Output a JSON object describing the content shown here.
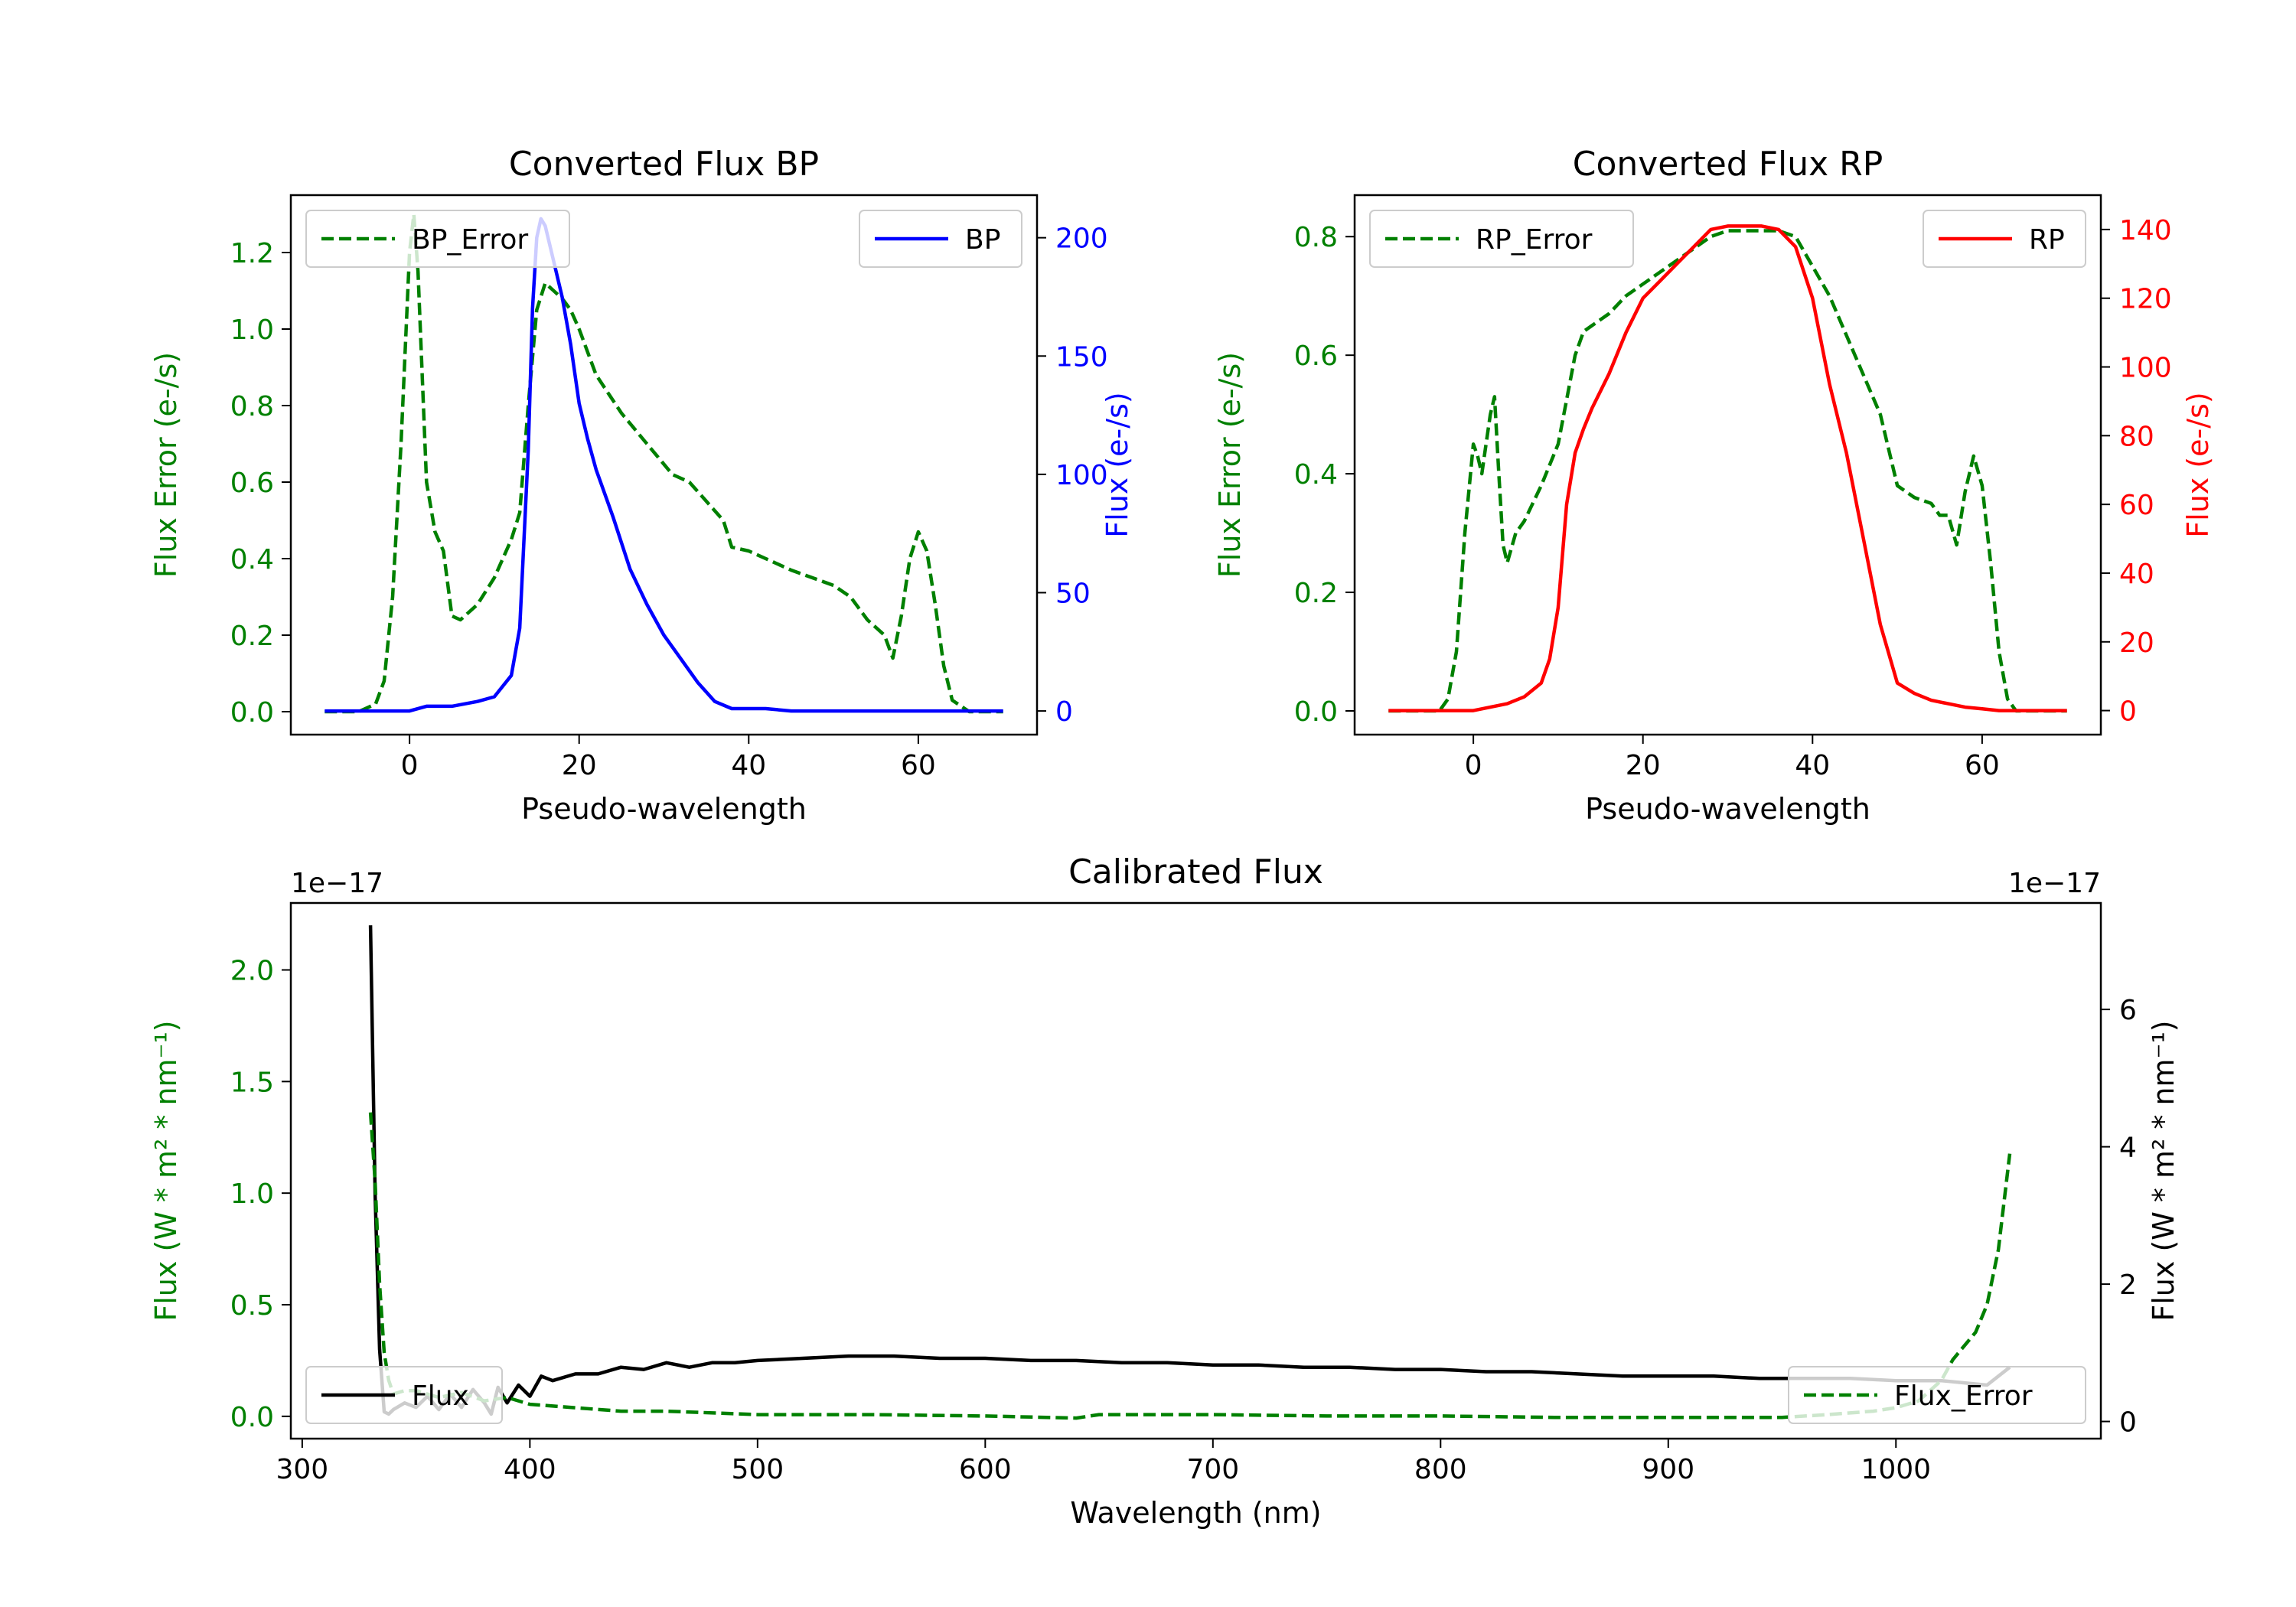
{
  "colors": {
    "green": "#008000",
    "blue": "#0000ff",
    "red": "#ff0000",
    "black": "#000000"
  },
  "chart_data": [
    {
      "id": "bp",
      "type": "line",
      "title": "Converted Flux BP",
      "xlabel": "Pseudo-wavelength",
      "ylabel_left": "Flux Error (e-/s)",
      "ylabel_right": "Flux (e-/s)",
      "xlim": [
        -14,
        74
      ],
      "ylim_left": [
        -0.06,
        1.35
      ],
      "ylim_right": [
        -10,
        218
      ],
      "xticks": [
        0,
        20,
        40,
        60
      ],
      "yticks_left": [
        0.0,
        0.2,
        0.4,
        0.6,
        0.8,
        1.0,
        1.2
      ],
      "yticks_right": [
        0,
        50,
        100,
        150,
        200
      ],
      "legend_left": "top-left",
      "legend_right": "top-right",
      "series": [
        {
          "name": "BP_Error",
          "axis": "left",
          "style": "dashed",
          "color": "#008000",
          "x": [
            -10,
            -6,
            -4,
            -3,
            -2,
            -1,
            0,
            0.5,
            1,
            2,
            3,
            4,
            5,
            6,
            8,
            10,
            12,
            13,
            14,
            15,
            16,
            17,
            18,
            19,
            20,
            22,
            25,
            28,
            31,
            33,
            35,
            37,
            38,
            40,
            42,
            45,
            50,
            52,
            54,
            56,
            57,
            58,
            59,
            60,
            61,
            62,
            63,
            64,
            66,
            70
          ],
          "y": [
            0,
            0,
            0.02,
            0.08,
            0.3,
            0.7,
            1.2,
            1.3,
            1.15,
            0.6,
            0.47,
            0.42,
            0.25,
            0.24,
            0.28,
            0.35,
            0.45,
            0.52,
            0.8,
            1.05,
            1.12,
            1.1,
            1.08,
            1.05,
            1.0,
            0.88,
            0.78,
            0.7,
            0.62,
            0.6,
            0.55,
            0.5,
            0.43,
            0.42,
            0.4,
            0.37,
            0.33,
            0.3,
            0.24,
            0.2,
            0.14,
            0.25,
            0.4,
            0.47,
            0.42,
            0.28,
            0.12,
            0.03,
            0,
            0
          ]
        },
        {
          "name": "BP",
          "axis": "right",
          "style": "solid",
          "color": "#0000ff",
          "x": [
            -10,
            -5,
            0,
            2,
            5,
            8,
            10,
            12,
            13,
            14,
            14.5,
            15,
            15.5,
            16,
            17,
            18,
            19,
            20,
            21,
            22,
            24,
            26,
            28,
            30,
            32,
            34,
            36,
            38,
            40,
            42,
            45,
            50,
            55,
            60,
            65,
            70
          ],
          "y": [
            0,
            0,
            0,
            2,
            2,
            4,
            6,
            15,
            35,
            110,
            170,
            200,
            208,
            205,
            190,
            175,
            155,
            130,
            115,
            102,
            82,
            60,
            45,
            32,
            22,
            12,
            4,
            1,
            1,
            1,
            0,
            0,
            0,
            0,
            0,
            0
          ]
        }
      ]
    },
    {
      "id": "rp",
      "type": "line",
      "title": "Converted Flux RP",
      "xlabel": "Pseudo-wavelength",
      "ylabel_left": "Flux Error (e-/s)",
      "ylabel_right": "Flux (e-/s)",
      "xlim": [
        -14,
        74
      ],
      "ylim_left": [
        -0.04,
        0.87
      ],
      "ylim_right": [
        -7,
        150
      ],
      "xticks": [
        0,
        20,
        40,
        60
      ],
      "yticks_left": [
        0.0,
        0.2,
        0.4,
        0.6,
        0.8
      ],
      "yticks_right": [
        0,
        20,
        40,
        60,
        80,
        100,
        120,
        140
      ],
      "legend_left": "top-left",
      "legend_right": "top-right",
      "series": [
        {
          "name": "RP_Error",
          "axis": "left",
          "style": "dashed",
          "color": "#008000",
          "x": [
            -10,
            -4,
            -3,
            -2,
            -1,
            0,
            0.5,
            1,
            1.5,
            2,
            2.5,
            3,
            3.5,
            4,
            5,
            6,
            8,
            10,
            12,
            13,
            14,
            16,
            18,
            20,
            22,
            25,
            28,
            30,
            32,
            34,
            36,
            38,
            40,
            42,
            45,
            48,
            50,
            52,
            54,
            55,
            56,
            57,
            58,
            59,
            60,
            61,
            62,
            63,
            64,
            66,
            70
          ],
          "y": [
            0,
            0,
            0.02,
            0.1,
            0.3,
            0.45,
            0.43,
            0.4,
            0.45,
            0.5,
            0.53,
            0.4,
            0.28,
            0.25,
            0.3,
            0.32,
            0.38,
            0.45,
            0.6,
            0.64,
            0.65,
            0.67,
            0.7,
            0.72,
            0.74,
            0.77,
            0.8,
            0.81,
            0.81,
            0.81,
            0.81,
            0.8,
            0.75,
            0.7,
            0.6,
            0.5,
            0.38,
            0.36,
            0.35,
            0.33,
            0.33,
            0.28,
            0.37,
            0.43,
            0.38,
            0.25,
            0.1,
            0.02,
            0,
            0,
            0
          ]
        },
        {
          "name": "RP",
          "axis": "right",
          "style": "solid",
          "color": "#ff0000",
          "x": [
            -10,
            -4,
            0,
            2,
            4,
            6,
            8,
            9,
            10,
            11,
            12,
            13,
            14,
            16,
            18,
            20,
            22,
            24,
            26,
            28,
            30,
            32,
            34,
            36,
            38,
            40,
            42,
            44,
            46,
            48,
            50,
            52,
            54,
            56,
            58,
            60,
            62,
            65,
            70
          ],
          "y": [
            0,
            0,
            0,
            1,
            2,
            4,
            8,
            15,
            30,
            60,
            75,
            82,
            88,
            98,
            110,
            120,
            125,
            130,
            135,
            140,
            141,
            141,
            141,
            140,
            135,
            120,
            95,
            75,
            50,
            25,
            8,
            5,
            3,
            2,
            1,
            0.5,
            0,
            0,
            0
          ]
        }
      ]
    },
    {
      "id": "calibrated",
      "type": "line",
      "title": "Calibrated Flux",
      "xlabel": "Wavelength (nm)",
      "ylabel_left": "Flux (W * m² * nm⁻¹)",
      "ylabel_right": "Flux (W * m² * nm⁻¹)",
      "offset_left": "1e−17",
      "offset_right": "1e−17",
      "xlim": [
        295,
        1090
      ],
      "ylim_left": [
        -0.1,
        2.3
      ],
      "ylim_right": [
        -0.25,
        7.55
      ],
      "xticks": [
        300,
        400,
        500,
        600,
        700,
        800,
        900,
        1000
      ],
      "yticks_left": [
        0.0,
        0.5,
        1.0,
        1.5,
        2.0
      ],
      "yticks_right": [
        0,
        2,
        4,
        6
      ],
      "legend_left": "bottom-left",
      "legend_right": "bottom-right",
      "series": [
        {
          "name": "Flux",
          "axis": "left",
          "style": "solid",
          "color": "#000000",
          "x": [
            330,
            332,
            334,
            336,
            338,
            340,
            345,
            350,
            355,
            360,
            365,
            370,
            375,
            380,
            383,
            386,
            390,
            395,
            400,
            405,
            410,
            420,
            430,
            440,
            450,
            460,
            470,
            480,
            490,
            500,
            520,
            540,
            560,
            580,
            600,
            620,
            640,
            660,
            680,
            700,
            720,
            740,
            760,
            780,
            800,
            820,
            840,
            860,
            880,
            900,
            920,
            940,
            960,
            980,
            1000,
            1020,
            1040,
            1050
          ],
          "y": [
            2.2,
            1.0,
            0.3,
            0.02,
            0.01,
            0.03,
            0.06,
            0.04,
            0.09,
            0.03,
            0.1,
            0.04,
            0.12,
            0.06,
            0.01,
            0.13,
            0.06,
            0.14,
            0.09,
            0.18,
            0.16,
            0.19,
            0.19,
            0.22,
            0.21,
            0.24,
            0.22,
            0.24,
            0.24,
            0.25,
            0.26,
            0.27,
            0.27,
            0.26,
            0.26,
            0.25,
            0.25,
            0.24,
            0.24,
            0.23,
            0.23,
            0.22,
            0.22,
            0.21,
            0.21,
            0.2,
            0.2,
            0.19,
            0.18,
            0.18,
            0.18,
            0.17,
            0.17,
            0.17,
            0.16,
            0.16,
            0.14,
            0.22
          ]
        },
        {
          "name": "Flux_Error",
          "axis": "right",
          "style": "dashed",
          "color": "#008000",
          "x": [
            330,
            332,
            334,
            336,
            338,
            340,
            345,
            350,
            360,
            370,
            380,
            390,
            400,
            420,
            440,
            460,
            500,
            550,
            600,
            640,
            650,
            700,
            750,
            800,
            850,
            900,
            950,
            970,
            990,
            1000,
            1010,
            1020,
            1025,
            1030,
            1035,
            1040,
            1045,
            1050
          ],
          "y": [
            4.5,
            3.5,
            2.0,
            1.0,
            0.6,
            0.4,
            0.45,
            0.45,
            0.35,
            0.42,
            0.3,
            0.35,
            0.25,
            0.2,
            0.15,
            0.15,
            0.1,
            0.1,
            0.08,
            0.05,
            0.1,
            0.1,
            0.08,
            0.08,
            0.06,
            0.06,
            0.06,
            0.1,
            0.15,
            0.2,
            0.3,
            0.6,
            0.9,
            1.1,
            1.3,
            1.7,
            2.5,
            3.9
          ]
        }
      ]
    }
  ]
}
